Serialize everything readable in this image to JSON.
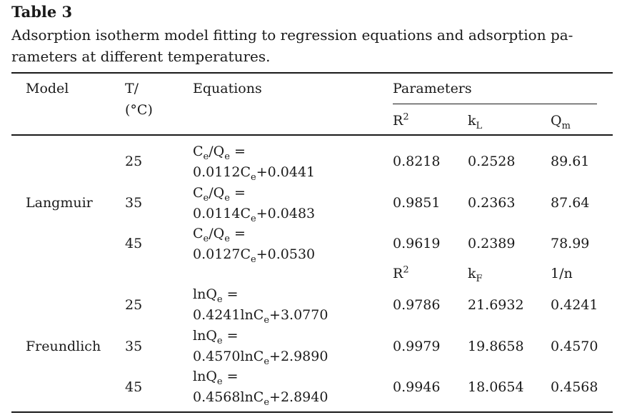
{
  "table": {
    "label": "Table 3",
    "caption": "Adsorption isotherm model fitting to regression equations and adsorption parameters at different temperatures.",
    "caption_line1": "Adsorption isotherm model fitting to regression equations and adsorption pa-",
    "caption_line2": "rameters at different temperatures.",
    "headers": {
      "model": "Model",
      "temp_line1": "T/",
      "temp_line2": "(°C)",
      "equations": "Equations",
      "parameters": "Parameters",
      "langmuir_params": {
        "r2_base": "R",
        "r2_sup": "2",
        "kl_base": "k",
        "kl_sub": "L",
        "qm_base": "Q",
        "qm_sub": "m"
      },
      "freundlich_params": {
        "r2_base": "R",
        "r2_sup": "2",
        "kf_base": "k",
        "kf_sub": "F",
        "n": "1/n"
      }
    },
    "groups": [
      {
        "model": "Langmuir",
        "rows": [
          {
            "t": "25",
            "r2": "0.8218",
            "k": "0.2528",
            "p3": "89.61",
            "coef": "0.0112",
            "intercept": "+0.0441"
          },
          {
            "t": "35",
            "r2": "0.9851",
            "k": "0.2363",
            "p3": "87.64",
            "coef": "0.0114",
            "intercept": "+0.0483"
          },
          {
            "t": "45",
            "r2": "0.9619",
            "k": "0.2389",
            "p3": "78.99",
            "coef": "0.0127",
            "intercept": "+0.0530"
          }
        ]
      },
      {
        "model": "Freundlich",
        "rows": [
          {
            "t": "25",
            "r2": "0.9786",
            "k": "21.6932",
            "p3": "0.4241",
            "coef": "0.4241",
            "intercept": "+3.0770"
          },
          {
            "t": "35",
            "r2": "0.9979",
            "k": "19.8658",
            "p3": "0.4570",
            "coef": "0.4570",
            "intercept": "+2.9890"
          },
          {
            "t": "45",
            "r2": "0.9946",
            "k": "18.0654",
            "p3": "0.4568",
            "coef": "0.4568",
            "intercept": "+2.8940"
          }
        ]
      }
    ],
    "eq_parts": {
      "langmuir_lhs_c": "C",
      "langmuir_lhs_sub": "e",
      "slash": "/",
      "q": "Q",
      "q_sub": "e",
      "equals": " =",
      "langmuir_rhs_c": "C",
      "langmuir_rhs_sub": "e",
      "freundlich_lhs": "lnQ",
      "freundlich_lhs_sub": "e",
      "freundlich_rhs_ln": "lnC",
      "freundlich_rhs_sub": "e"
    }
  }
}
